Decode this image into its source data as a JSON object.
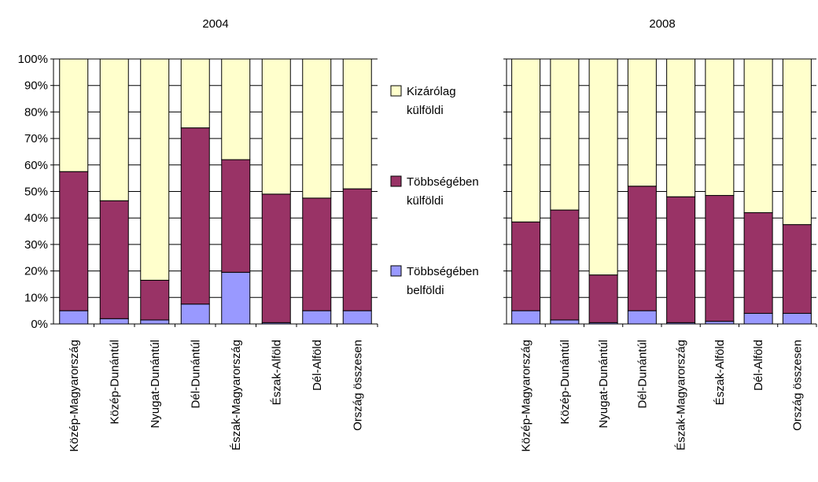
{
  "colors": {
    "belfoldi": "#9999FF",
    "tobbseg_kulfoldi": "#993366",
    "kizarolag_kulfoldi": "#FFFFCC",
    "stroke": "#000000",
    "grid": "#000000"
  },
  "legend": {
    "items": [
      {
        "key": "kizarolag_kulfoldi",
        "line1": "Kizárólag",
        "line2": "külföldi"
      },
      {
        "key": "tobbseg_kulfoldi",
        "line1": "Többségében",
        "line2": "külföldi"
      },
      {
        "key": "belfoldi",
        "line1": "Többségében",
        "line2": "belföldi"
      }
    ]
  },
  "y_ticks": [
    "0%",
    "10%",
    "20%",
    "30%",
    "40%",
    "50%",
    "60%",
    "70%",
    "80%",
    "90%",
    "100%"
  ],
  "chart_data": [
    {
      "type": "bar",
      "stacked": true,
      "title": "2004",
      "categories": [
        "Közép-Magyarország",
        "Közép-Dunántúl",
        "Nyugat-Dunántúl",
        "Dél-Dunántúl",
        "Észak-Magyarország",
        "Észak-Alföld",
        "Dél-Alföld",
        "Ország összesen"
      ],
      "series": [
        {
          "name": "Többségében belföldi",
          "key": "belfoldi",
          "values": [
            5,
            2,
            1.5,
            7.5,
            19.5,
            0.5,
            5,
            5
          ]
        },
        {
          "name": "Többségében külföldi",
          "key": "tobbseg_kulfoldi",
          "values": [
            52.5,
            44.5,
            15,
            66.5,
            42.5,
            48.5,
            42.5,
            46
          ]
        },
        {
          "name": "Kizárólag külföldi",
          "key": "kizarolag_kulfoldi",
          "values": [
            42.5,
            53.5,
            83.5,
            26,
            38,
            51,
            52.5,
            49
          ]
        }
      ],
      "ylim": [
        0,
        100
      ],
      "grid": true,
      "legend_position": "right"
    },
    {
      "type": "bar",
      "stacked": true,
      "title": "2008",
      "categories": [
        "Közép-Magyarország",
        "Közép-Dunántúl",
        "Nyugat-Dunántúl",
        "Dél-Dunántúl",
        "Észak-Magyarország",
        "Észak-Alföld",
        "Dél-Alföld",
        "Ország összesen"
      ],
      "series": [
        {
          "name": "Többségében belföldi",
          "key": "belfoldi",
          "values": [
            5,
            1.5,
            0.5,
            5,
            0.5,
            1,
            4,
            4
          ]
        },
        {
          "name": "Többségében külföldi",
          "key": "tobbseg_kulfoldi",
          "values": [
            33.5,
            41.5,
            18,
            47,
            47.5,
            47.5,
            38,
            33.5
          ]
        },
        {
          "name": "Kizárólag külföldi",
          "key": "kizarolag_kulfoldi",
          "values": [
            61.5,
            57,
            81.5,
            48,
            52,
            51.5,
            58,
            62.5
          ]
        }
      ],
      "ylim": [
        0,
        100
      ],
      "grid": true
    }
  ]
}
